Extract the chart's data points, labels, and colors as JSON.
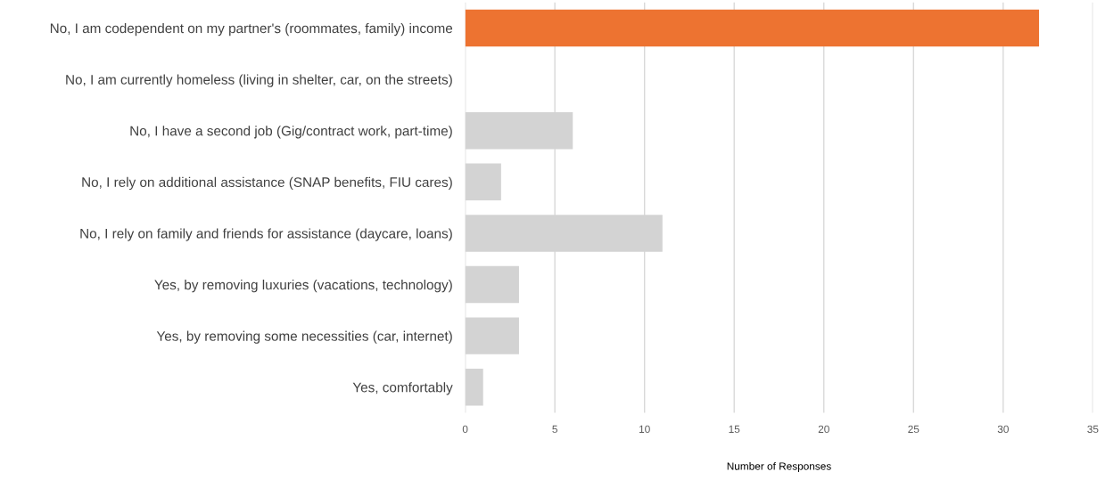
{
  "chart_data": {
    "type": "bar",
    "orientation": "horizontal",
    "xlabel": "Number of Responses",
    "categories": [
      "No, I am codependent on my partner's (roommates, family) income",
      "No, I am currently homeless (living in shelter, car, on the streets)",
      "No, I have a second job (Gig/contract work, part-time)",
      "No, I rely on additional assistance (SNAP benefits, FIU cares)",
      "No, I rely on family and friends for assistance (daycare, loans)",
      "Yes, by removing luxuries (vacations, technology)",
      "Yes, by removing some necessities (car, internet)",
      "Yes, comfortably"
    ],
    "values": [
      32,
      0,
      6,
      2,
      11,
      3,
      3,
      1
    ],
    "colors": [
      "#ed7331",
      "#d3d3d3",
      "#d3d3d3",
      "#d3d3d3",
      "#d3d3d3",
      "#d3d3d3",
      "#d3d3d3",
      "#d3d3d3"
    ],
    "xlim": [
      0,
      35
    ],
    "xticks": [
      0,
      5,
      10,
      15,
      20,
      25,
      30,
      35
    ],
    "grid": "x"
  }
}
